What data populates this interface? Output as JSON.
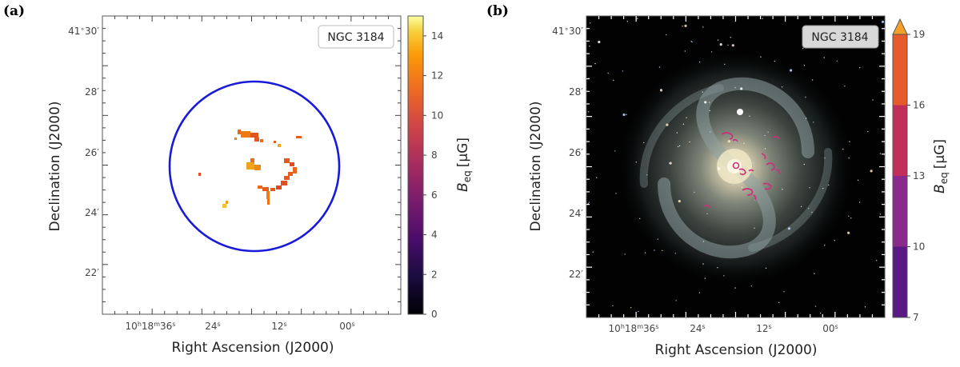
{
  "figure": {
    "panel_a_label": "(a)",
    "panel_b_label": "(b)"
  },
  "chart_data": [
    {
      "type": "heatmap",
      "panel": "(a)",
      "annotation": "NGC 3184",
      "xlabel": "Right Ascension (J2000)",
      "ylabel": "Declination (J2000)",
      "x_ticks": [
        {
          "pre": "10",
          "h": "h",
          "mid": "18",
          "m": "m",
          "sec": "36",
          "s": "s"
        },
        {
          "sec": "24",
          "s": "s"
        },
        {
          "sec": "12",
          "s": "s"
        },
        {
          "sec": "00",
          "s": "s"
        }
      ],
      "y_ticks": [
        {
          "deg": "41",
          "degsym": "∘",
          "min": "30",
          "prime": "′"
        },
        {
          "min": "28",
          "prime": "′"
        },
        {
          "min": "26",
          "prime": "′"
        },
        {
          "min": "24",
          "prime": "′"
        },
        {
          "min": "22",
          "prime": "′"
        }
      ],
      "colorbar": {
        "label_main": "B",
        "label_sub": "eq",
        "label_unit": "[μG]",
        "ticks": [
          "0",
          "2",
          "4",
          "6",
          "8",
          "10",
          "12",
          "14"
        ],
        "range": [
          0,
          15
        ],
        "colormap": "inferno",
        "extend": "none"
      },
      "overlay": {
        "shape": "circle",
        "color": "#1919d8"
      },
      "pixels_description": "Sparse orange/red equipartition field pixels (~8–14 μG) inside the blue circle"
    },
    {
      "type": "heatmap",
      "panel": "(b)",
      "annotation": "NGC 3184",
      "background": "optical composite image of spiral galaxy NGC 3184",
      "xlabel": "Right Ascension (J2000)",
      "ylabel": "Declination (J2000)",
      "x_ticks": [
        {
          "pre": "10",
          "h": "h",
          "mid": "18",
          "m": "m",
          "sec": "36",
          "s": "s"
        },
        {
          "sec": "24",
          "s": "s"
        },
        {
          "sec": "12",
          "s": "s"
        },
        {
          "sec": "00",
          "s": "s"
        }
      ],
      "y_ticks": [
        {
          "deg": "41",
          "degsym": "∘",
          "min": "30",
          "prime": "′"
        },
        {
          "min": "28",
          "prime": "′"
        },
        {
          "min": "26",
          "prime": "′"
        },
        {
          "min": "24",
          "prime": "′"
        },
        {
          "min": "22",
          "prime": "′"
        }
      ],
      "colorbar": {
        "label_main": "B",
        "label_sub": "eq",
        "label_unit": "[μG]",
        "ticks": [
          "7",
          "10",
          "13",
          "16",
          "19"
        ],
        "bins": [
          {
            "from": 7,
            "to": 10,
            "color": "#5a1a86"
          },
          {
            "from": 10,
            "to": 13,
            "color": "#8a2a8c"
          },
          {
            "from": 13,
            "to": 16,
            "color": "#c22e5a"
          },
          {
            "from": 16,
            "to": 19,
            "color": "#e65a2c"
          }
        ],
        "extend_color": "#f5a028",
        "extend": "max"
      },
      "contour_color": "#c8307a"
    }
  ]
}
